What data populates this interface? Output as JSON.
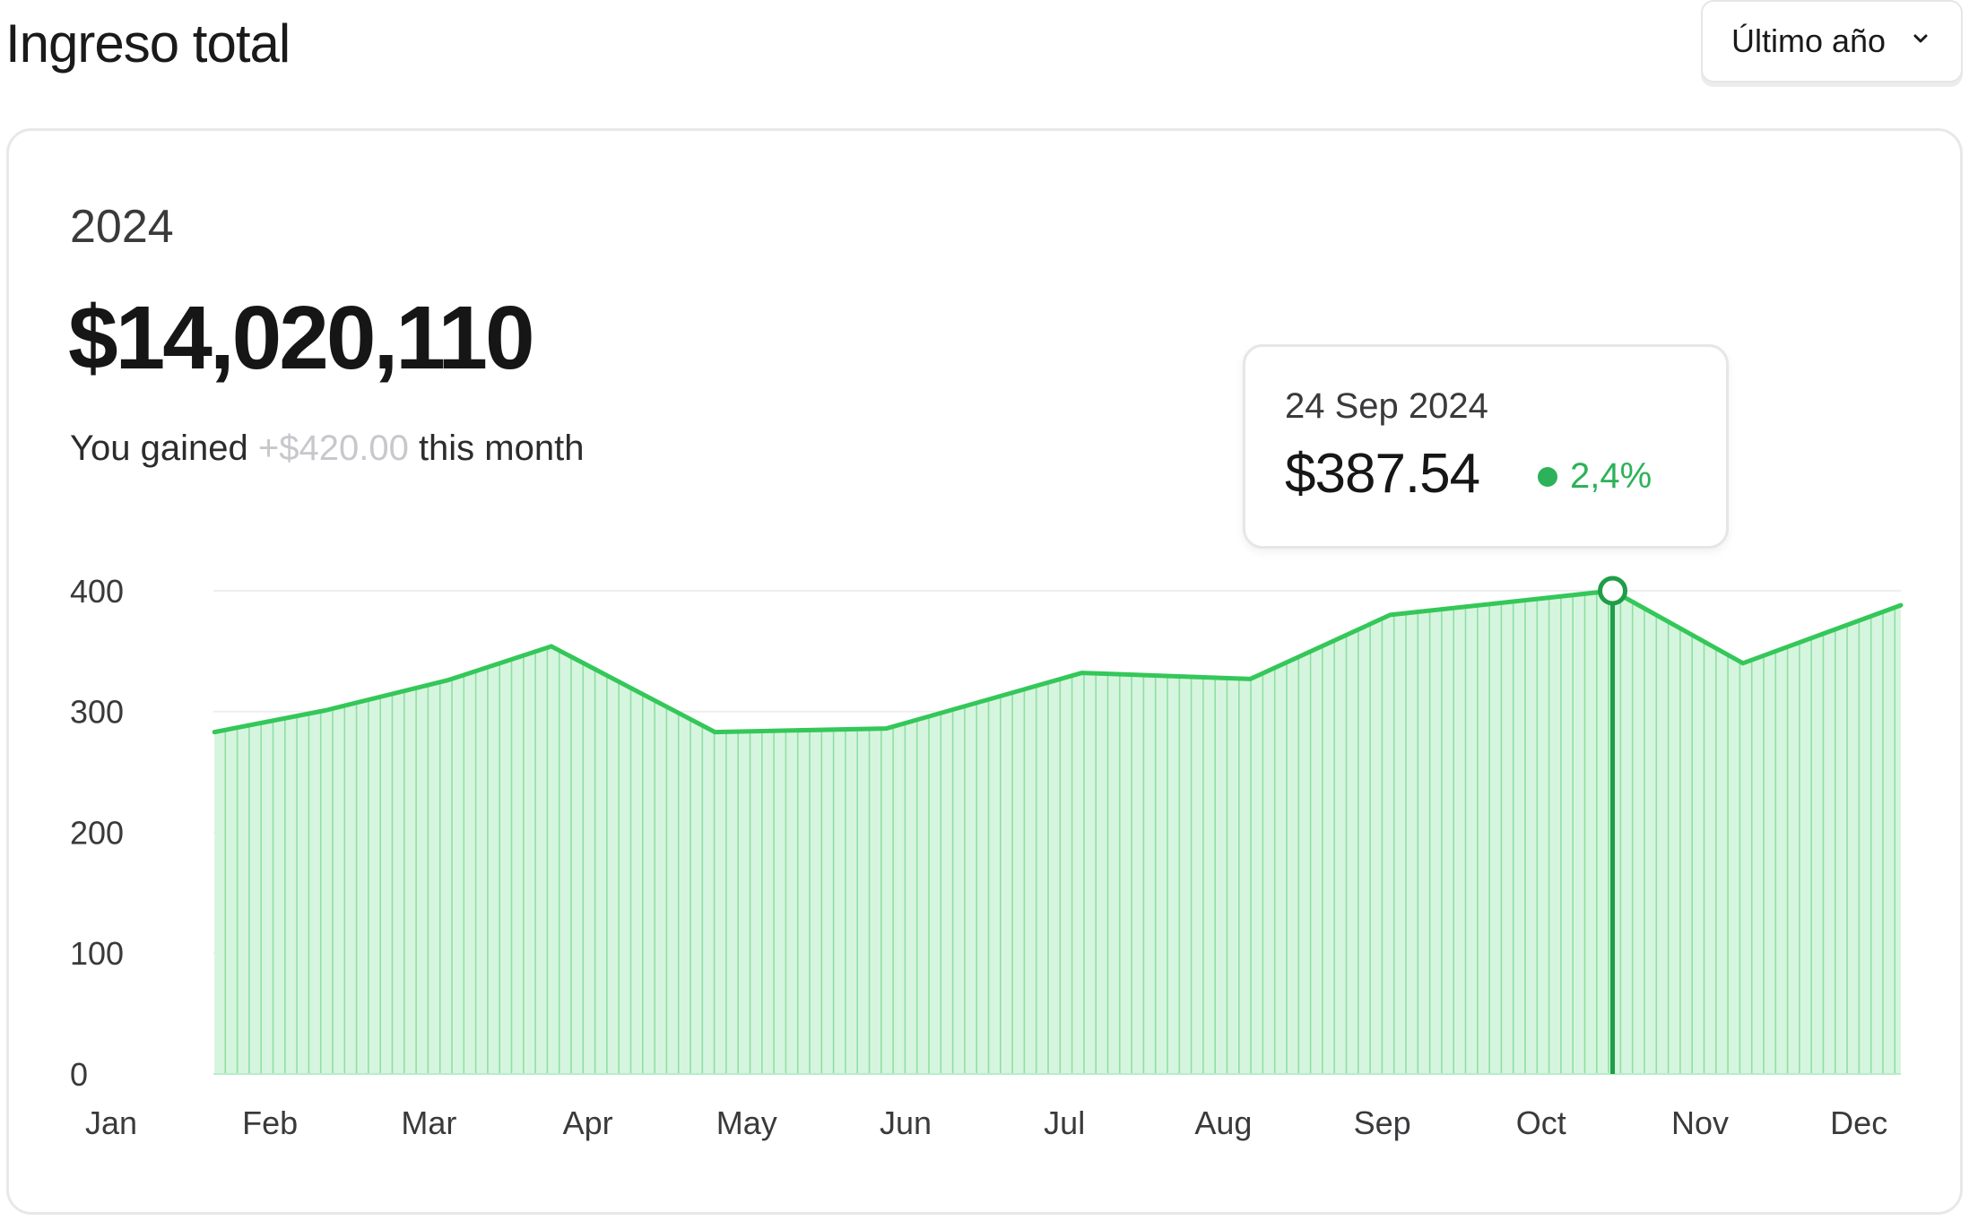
{
  "header": {
    "title": "Ingreso total"
  },
  "range_select": {
    "value": "Último año"
  },
  "summary": {
    "year": "2024",
    "total": "$14,020,110",
    "gain_prefix": "You gained",
    "gain_amount": "+$420.00",
    "gain_suffix": "this month"
  },
  "tooltip": {
    "date": "24 Sep 2024",
    "value": "$387.54",
    "change": "2,4%"
  },
  "colors": {
    "line": "#34c759",
    "fill": "#d6f5de",
    "positive": "#2db25a",
    "grid": "#eeeeee"
  },
  "chart_data": {
    "type": "area",
    "categories": [
      "Jan",
      "Feb",
      "Mar",
      "Apr",
      "May",
      "Jun",
      "Jul",
      "Aug",
      "Sep",
      "Oct",
      "Nov",
      "Dec"
    ],
    "x": [
      0.65,
      1.35,
      2.12,
      2.77,
      3.8,
      4.88,
      6.11,
      7.17,
      8.05,
      9.45,
      10.27,
      11.68
    ],
    "y": [
      283,
      301,
      326,
      354,
      283,
      286,
      332,
      327,
      380,
      400,
      340,
      388
    ],
    "highlight": {
      "x": 9.45,
      "y": 400
    },
    "ylim": [
      0,
      420
    ],
    "yticks": [
      0,
      100,
      200,
      300,
      400
    ],
    "grid": true,
    "legend": "none"
  }
}
